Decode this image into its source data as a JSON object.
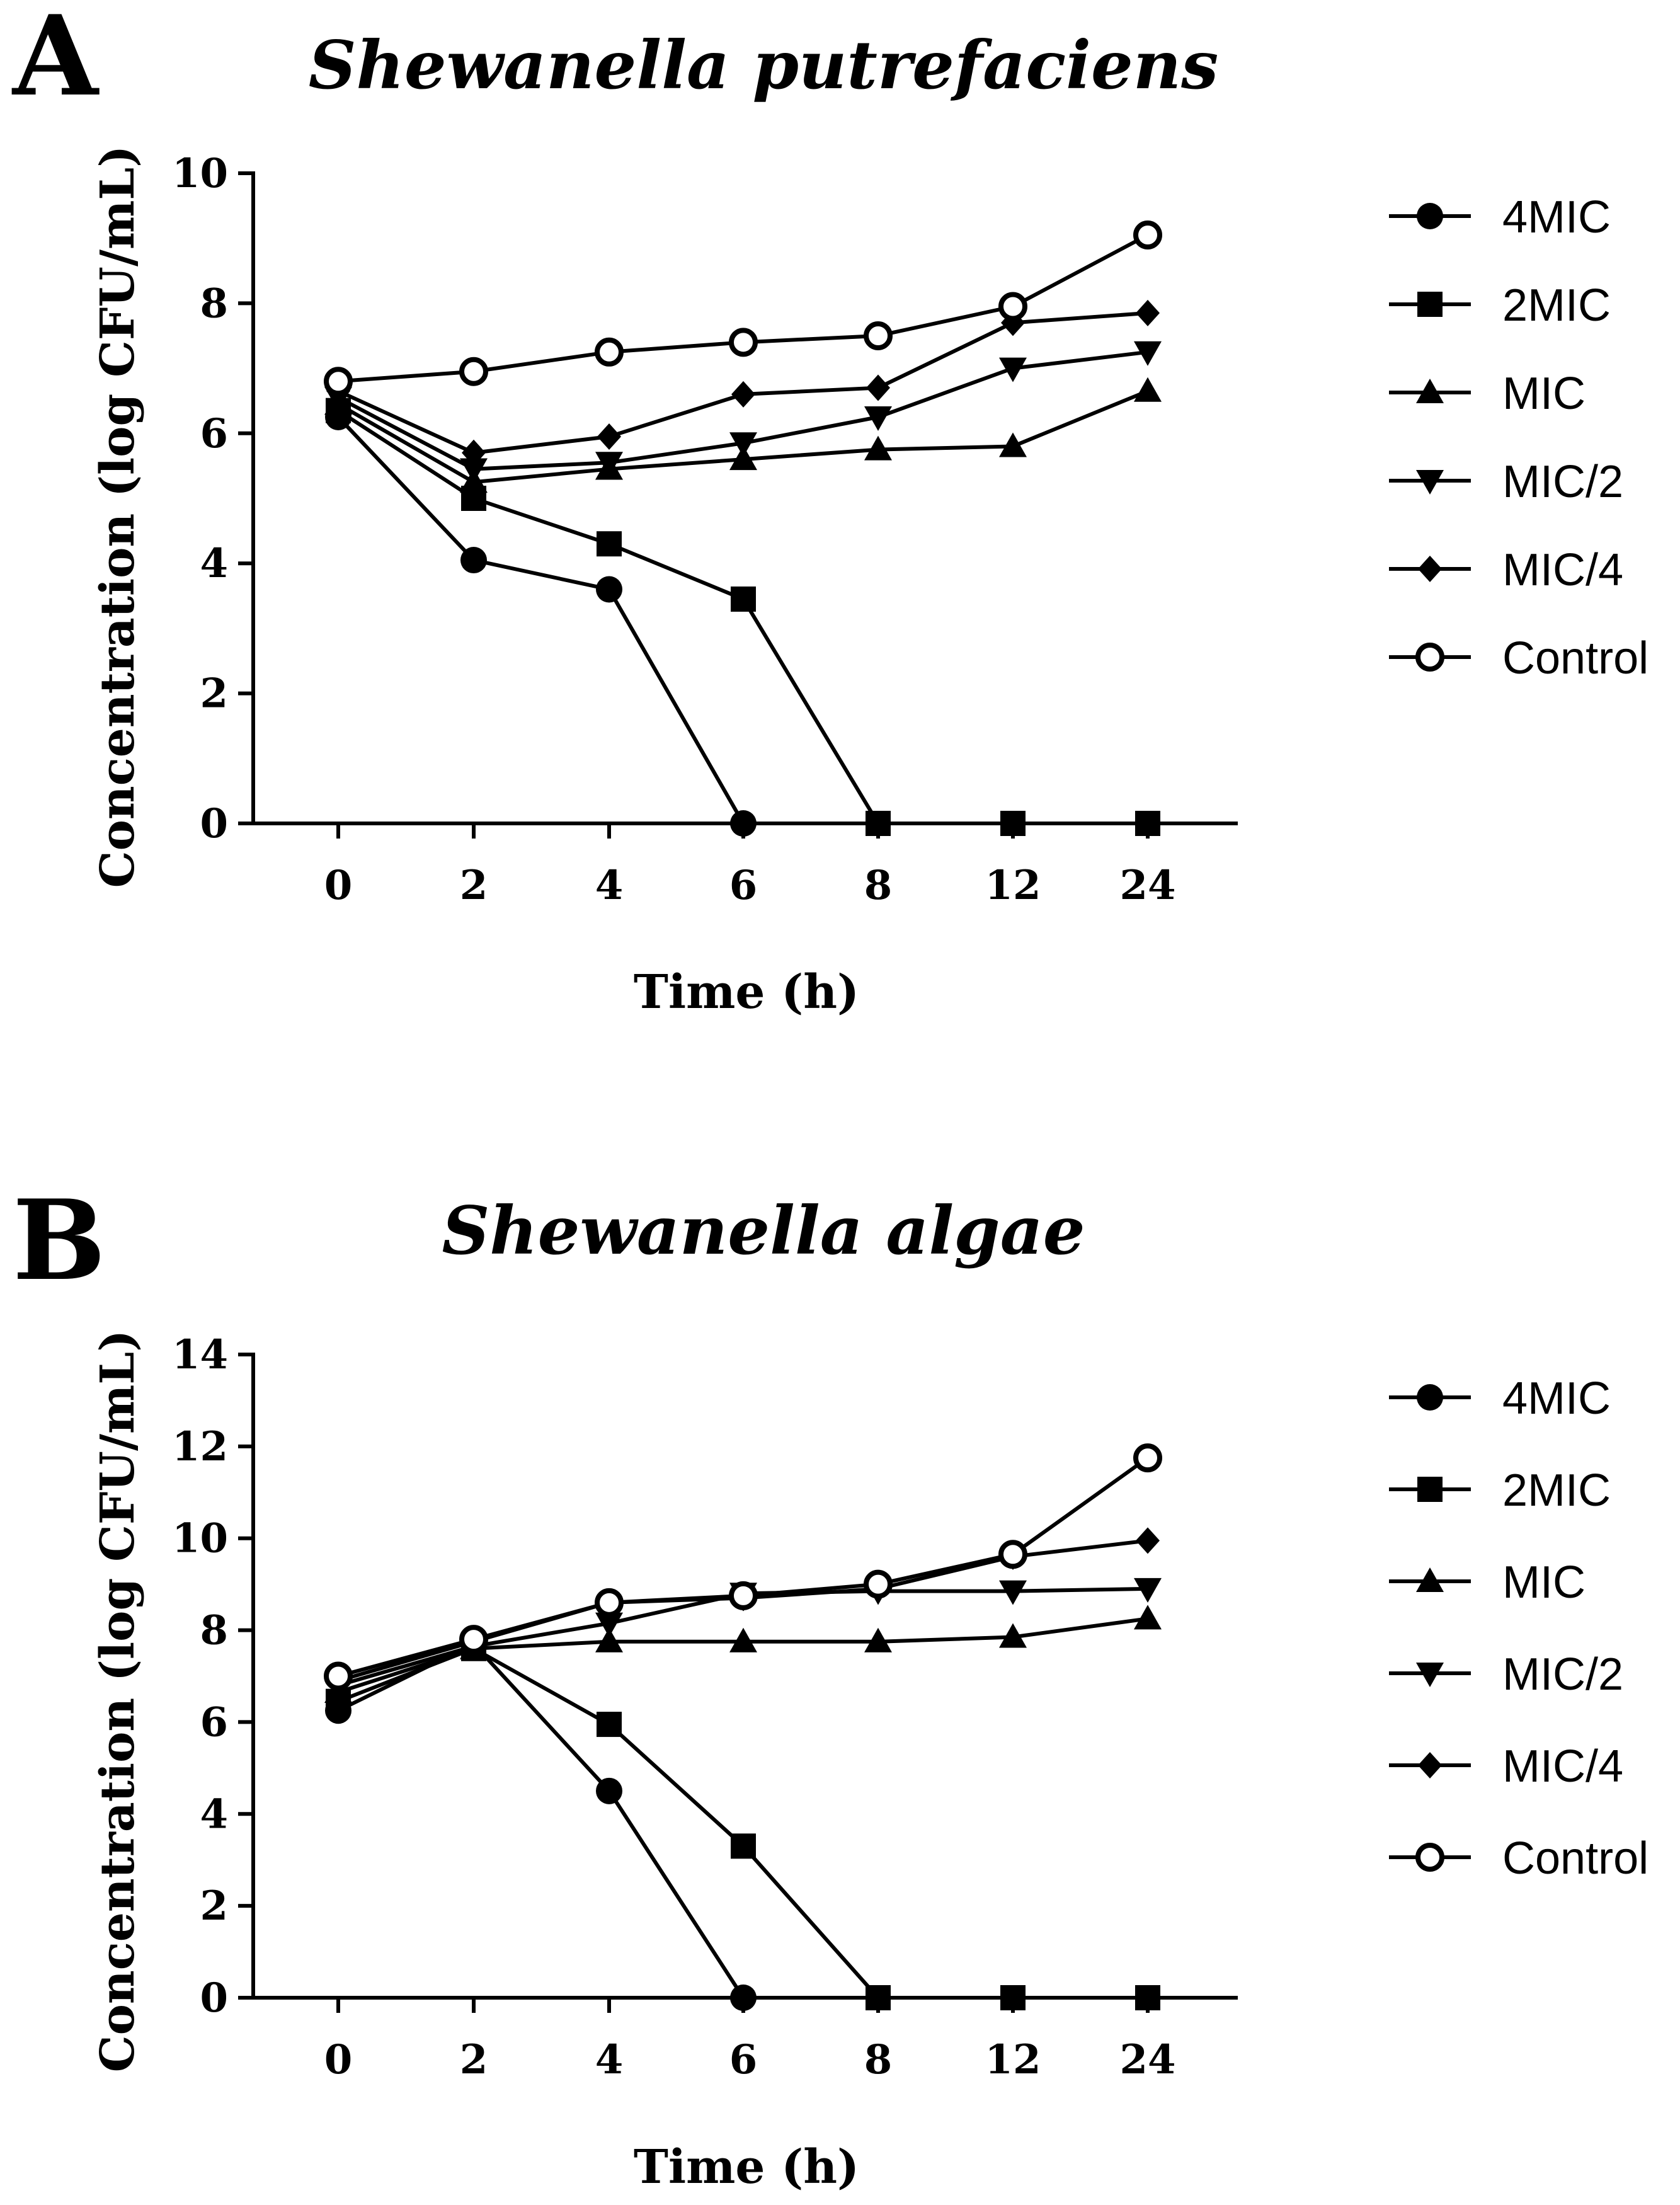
{
  "chart_data": [
    {
      "type": "line",
      "panel": "A",
      "title": "Shewanella putrefaciens",
      "xlabel": "Time (h)",
      "ylabel": "Concentration (log CFU/mL)",
      "categories": [
        "0",
        "2",
        "4",
        "6",
        "8",
        "12",
        "24"
      ],
      "ylim": [
        0,
        10
      ],
      "yticks": [
        0,
        2,
        4,
        6,
        8,
        10
      ],
      "grid": false,
      "legend_position": "right",
      "series": [
        {
          "name": "4MIC",
          "marker": "circle-filled",
          "values": [
            6.25,
            4.05,
            3.6,
            0,
            null,
            null,
            null
          ]
        },
        {
          "name": "2MIC",
          "marker": "square-filled",
          "values": [
            6.35,
            5.0,
            4.3,
            3.45,
            0,
            0,
            0
          ]
        },
        {
          "name": "MIC",
          "marker": "triangle-up-filled",
          "values": [
            6.45,
            5.25,
            5.45,
            5.6,
            5.75,
            5.8,
            6.65
          ]
        },
        {
          "name": "MIC/2",
          "marker": "triangle-down-filled",
          "values": [
            6.55,
            5.45,
            5.55,
            5.85,
            6.25,
            7.0,
            7.25
          ]
        },
        {
          "name": "MIC/4",
          "marker": "diamond-filled",
          "values": [
            6.65,
            5.7,
            5.95,
            6.6,
            6.7,
            7.7,
            7.85
          ]
        },
        {
          "name": "Control",
          "marker": "circle-open",
          "values": [
            6.8,
            6.95,
            7.25,
            7.4,
            7.5,
            7.95,
            9.05
          ]
        }
      ]
    },
    {
      "type": "line",
      "panel": "B",
      "title": "Shewanella algae",
      "xlabel": "Time (h)",
      "ylabel": "Concentration (log CFU/mL)",
      "categories": [
        "0",
        "2",
        "4",
        "6",
        "8",
        "12",
        "24"
      ],
      "ylim": [
        0,
        14
      ],
      "yticks": [
        0,
        2,
        4,
        6,
        8,
        10,
        12,
        14
      ],
      "grid": false,
      "legend_position": "right",
      "series": [
        {
          "name": "4MIC",
          "marker": "circle-filled",
          "values": [
            6.25,
            7.7,
            4.5,
            0,
            null,
            null,
            null
          ]
        },
        {
          "name": "2MIC",
          "marker": "square-filled",
          "values": [
            6.45,
            7.6,
            5.95,
            3.3,
            0,
            0,
            0
          ]
        },
        {
          "name": "MIC",
          "marker": "triangle-up-filled",
          "values": [
            6.65,
            7.6,
            7.75,
            7.75,
            7.75,
            7.85,
            8.25
          ]
        },
        {
          "name": "MIC/2",
          "marker": "triangle-down-filled",
          "values": [
            6.8,
            7.65,
            8.15,
            8.8,
            8.85,
            8.85,
            8.9
          ]
        },
        {
          "name": "MIC/4",
          "marker": "diamond-filled",
          "values": [
            6.9,
            7.75,
            8.6,
            8.7,
            8.9,
            9.6,
            9.95
          ]
        },
        {
          "name": "Control",
          "marker": "circle-open",
          "values": [
            7.0,
            7.8,
            8.6,
            8.75,
            9.0,
            9.65,
            11.75
          ]
        }
      ]
    }
  ]
}
